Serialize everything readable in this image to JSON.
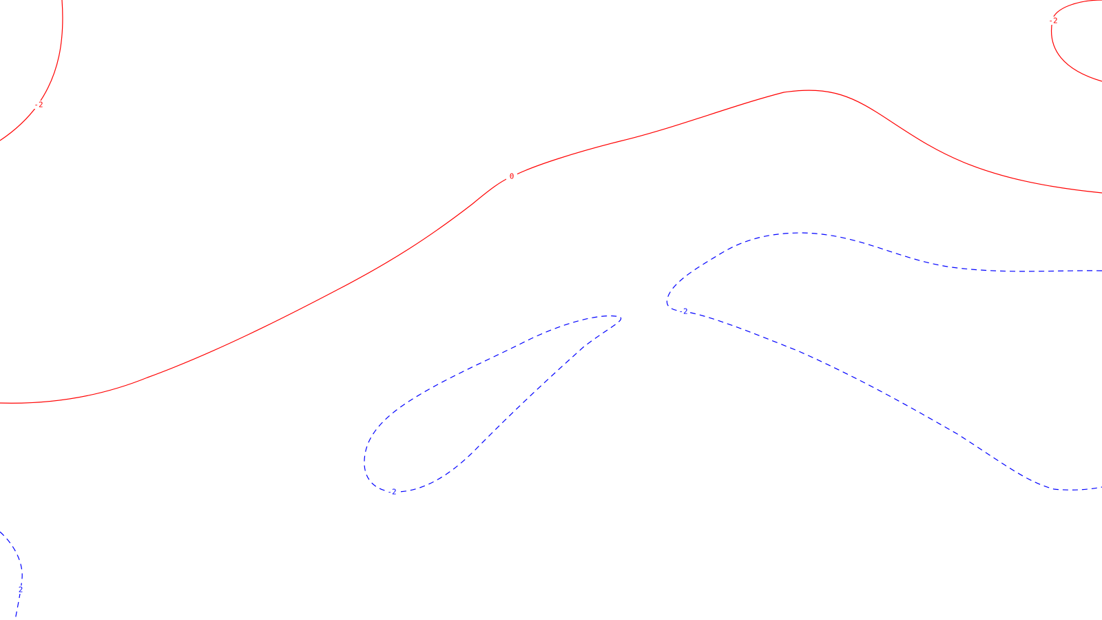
{
  "chart_data": {
    "type": "contour",
    "title": "",
    "xlabel": "",
    "ylabel": "",
    "grid": false,
    "legend": "none",
    "levels": [
      {
        "level": -2,
        "label": "-2",
        "color": "#ff0000",
        "style": "solid"
      },
      {
        "level": 0,
        "label": "0",
        "color": "#ff0000",
        "style": "solid"
      },
      {
        "level": 2,
        "label": "2",
        "color": "#0000ff",
        "style": "dashed"
      },
      {
        "level": -2,
        "label": "-2",
        "color": "#0000ff",
        "style": "dashed"
      }
    ],
    "contours": [
      {
        "id": "top-left-neg2",
        "label": "-2",
        "color": "#ff0000",
        "style": "solid"
      },
      {
        "id": "top-right-neg2",
        "label": "-2",
        "color": "#ff0000",
        "style": "solid"
      },
      {
        "id": "zero",
        "label": "0",
        "color": "#ff0000",
        "style": "solid"
      },
      {
        "id": "bottom-left-loop",
        "label": "-2",
        "color": "#0000ff",
        "style": "dashed"
      },
      {
        "id": "right-band",
        "label": "-2",
        "color": "#0000ff",
        "style": "dashed"
      },
      {
        "id": "bottom-left-two",
        "label": "2",
        "color": "#0000ff",
        "style": "dashed"
      }
    ]
  }
}
